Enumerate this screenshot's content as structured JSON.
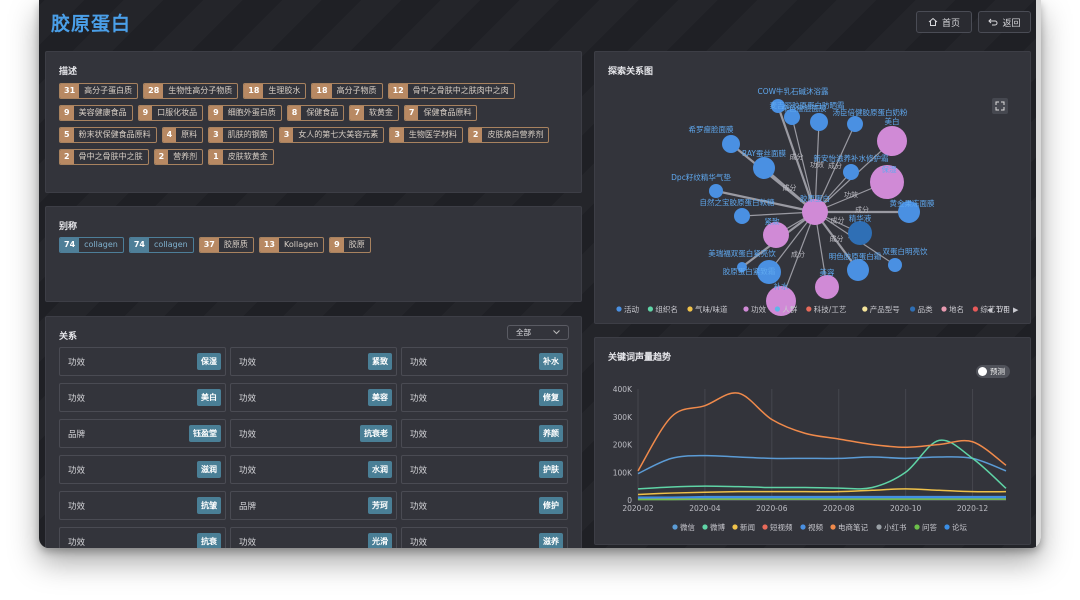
{
  "page": {
    "title": "胶原蛋白"
  },
  "header": {
    "home_label": "首页",
    "back_label": "返回"
  },
  "description": {
    "title": "描述",
    "tags": [
      {
        "count": "31",
        "label": "高分子蛋白质"
      },
      {
        "count": "28",
        "label": "生物性高分子物质"
      },
      {
        "count": "18",
        "label": "生理胶水"
      },
      {
        "count": "18",
        "label": "高分子物质"
      },
      {
        "count": "12",
        "label": "骨中之骨肤中之肤肉中之肉"
      },
      {
        "count": "9",
        "label": "美容健康食品"
      },
      {
        "count": "9",
        "label": "口服化妆品"
      },
      {
        "count": "9",
        "label": "细胞外蛋白质"
      },
      {
        "count": "8",
        "label": "保健食品"
      },
      {
        "count": "7",
        "label": "软黄金"
      },
      {
        "count": "7",
        "label": "保健食品原料"
      },
      {
        "count": "5",
        "label": "粉末状保健食品原料"
      },
      {
        "count": "4",
        "label": "原料"
      },
      {
        "count": "3",
        "label": "肌肤的钢筋"
      },
      {
        "count": "3",
        "label": "女人的第七大美容元素"
      },
      {
        "count": "3",
        "label": "生物医学材料"
      },
      {
        "count": "2",
        "label": "皮肤焕白营养剂"
      },
      {
        "count": "2",
        "label": "骨中之骨肤中之肤"
      },
      {
        "count": "2",
        "label": "营养剂"
      },
      {
        "count": "1",
        "label": "皮肤软黄金"
      }
    ]
  },
  "alias": {
    "title": "别称",
    "tags": [
      {
        "count": "74",
        "label": "collagen",
        "style": "blue"
      },
      {
        "count": "74",
        "label": "collagen",
        "style": "blue"
      },
      {
        "count": "37",
        "label": "胶原质",
        "style": "brown"
      },
      {
        "count": "13",
        "label": "Kollagen",
        "style": "brown"
      },
      {
        "count": "9",
        "label": "胶原",
        "style": "brown"
      }
    ]
  },
  "relations": {
    "title": "关系",
    "filter": "全部",
    "items": [
      {
        "type": "功效",
        "value": "保湿"
      },
      {
        "type": "功效",
        "value": "紧致"
      },
      {
        "type": "功效",
        "value": "补水"
      },
      {
        "type": "功效",
        "value": "美白"
      },
      {
        "type": "功效",
        "value": "美容"
      },
      {
        "type": "功效",
        "value": "修复"
      },
      {
        "type": "品牌",
        "value": "钰盈堂"
      },
      {
        "type": "功效",
        "value": "抗衰老"
      },
      {
        "type": "功效",
        "value": "养颜"
      },
      {
        "type": "功效",
        "value": "滋润"
      },
      {
        "type": "功效",
        "value": "水润"
      },
      {
        "type": "功效",
        "value": "护肤"
      },
      {
        "type": "功效",
        "value": "抗皱"
      },
      {
        "type": "品牌",
        "value": "芳珂"
      },
      {
        "type": "功效",
        "value": "修护"
      },
      {
        "type": "功效",
        "value": "抗衰"
      },
      {
        "type": "功效",
        "value": "光滑"
      },
      {
        "type": "功效",
        "value": "滋养"
      }
    ]
  },
  "graph": {
    "title": "探索关系图",
    "nodes": [
      {
        "label": "COW牛乳石碱沐浴露",
        "color": "#4a90e2"
      },
      {
        "label": "麦吉丽胶原蛋白防晒霜",
        "color": "#4a90e2"
      },
      {
        "label": "汤臣倍健胶原蛋白奶粉",
        "color": "#4a90e2"
      },
      {
        "label": "希罗瘦脸面膜",
        "color": "#4a90e2"
      },
      {
        "label": "朵色瘦脸面膜",
        "color": "#4a90e2"
      },
      {
        "label": "美白",
        "color": "#d08ad6"
      },
      {
        "label": "RAY蚕丝面膜",
        "color": "#4a90e2"
      },
      {
        "label": "新安怡滋养补水修护霜",
        "color": "#4a90e2"
      },
      {
        "label": "保湿",
        "color": "#d08ad6"
      },
      {
        "label": "Dpc籽纹精华气垫",
        "color": "#4a90e2"
      },
      {
        "label": "胶原蛋白",
        "color": "#d08ad6"
      },
      {
        "label": "自然之宝胶原蛋白软糖",
        "color": "#4a90e2"
      },
      {
        "label": "黄金果冻面膜",
        "color": "#4a90e2"
      },
      {
        "label": "紧致",
        "color": "#d08ad6"
      },
      {
        "label": "精华液",
        "color": "#2f6fb5"
      },
      {
        "label": "美瑞福双蛋白紧亮饮",
        "color": "#4a90e2"
      },
      {
        "label": "双蛋白明亮饮",
        "color": "#4a90e2"
      },
      {
        "label": "胶原蛋白紧致霜",
        "color": "#4a90e2"
      },
      {
        "label": "明色胶原蛋白霜",
        "color": "#4a90e2"
      },
      {
        "label": "美容",
        "color": "#d08ad6"
      },
      {
        "label": "补水",
        "color": "#d08ad6"
      }
    ],
    "edge_labels": [
      "成分",
      "成分",
      "功效",
      "成分",
      "功效",
      "成分",
      "成分",
      "功效",
      "成分",
      "成分",
      "功效",
      "成分",
      "功效",
      "成分",
      "功效"
    ],
    "legend": [
      {
        "label": "活动",
        "color": "#4a90e2"
      },
      {
        "label": "组织名",
        "color": "#5fd4a6"
      },
      {
        "label": "气味/味道",
        "color": "#f0c24a"
      },
      {
        "label": "功效",
        "color": "#d08ad6"
      },
      {
        "label": "人群",
        "color": "#5fb5e8"
      },
      {
        "label": "科技/工艺",
        "color": "#e86a5a"
      },
      {
        "label": "产品型号",
        "color": "#f5e49a"
      },
      {
        "label": "品类",
        "color": "#2f6fb5"
      },
      {
        "label": "地名",
        "color": "#e89ab0"
      },
      {
        "label": "综艺节目",
        "color": "#e85a5a"
      }
    ],
    "page": "1/4"
  },
  "trend": {
    "title": "关键词声量趋势",
    "toggle_label": "预测"
  },
  "chart_data": {
    "type": "line",
    "title": "关键词声量趋势",
    "x": [
      "2020-02",
      "2020-03",
      "2020-04",
      "2020-05",
      "2020-06",
      "2020-07",
      "2020-08",
      "2020-09",
      "2020-10",
      "2020-11",
      "2020-12",
      "2021-01"
    ],
    "xticks": [
      "2020-02",
      "2020-04",
      "2020-06",
      "2020-08",
      "2020-10",
      "2020-12"
    ],
    "yticks": [
      "0",
      "100K",
      "200K",
      "300K",
      "400K"
    ],
    "ylim": [
      0,
      400000
    ],
    "grid": "vertical",
    "legend_position": "bottom",
    "series": [
      {
        "name": "微信",
        "color": "#5b9bd5",
        "values": [
          95000,
          150000,
          160000,
          155000,
          150000,
          150000,
          150000,
          155000,
          150000,
          155000,
          150000,
          105000
        ]
      },
      {
        "name": "微博",
        "color": "#5fd4a6",
        "values": [
          40000,
          47000,
          50000,
          48000,
          45000,
          45000,
          43000,
          45000,
          100000,
          215000,
          150000,
          42000
        ]
      },
      {
        "name": "新闻",
        "color": "#f0c24a",
        "values": [
          20000,
          25000,
          28000,
          30000,
          30000,
          30000,
          30000,
          35000,
          40000,
          35000,
          30000,
          30000
        ]
      },
      {
        "name": "短视频",
        "color": "#e86a5a",
        "values": [
          5000,
          6000,
          7000,
          7000,
          8000,
          8000,
          8000,
          9000,
          9000,
          9000,
          9000,
          9000
        ]
      },
      {
        "name": "视频",
        "color": "#4a90e2",
        "values": [
          10000,
          10000,
          12000,
          12000,
          12000,
          12000,
          12000,
          12000,
          12000,
          12000,
          12000,
          12000
        ]
      },
      {
        "name": "电商笔记",
        "color": "#f08a4b",
        "values": [
          105000,
          300000,
          340000,
          385000,
          290000,
          240000,
          220000,
          200000,
          190000,
          200000,
          210000,
          125000
        ]
      },
      {
        "name": "小红书",
        "color": "#9aa0a6",
        "values": [
          3000,
          3000,
          4000,
          4000,
          4000,
          4000,
          4000,
          4000,
          4000,
          4000,
          4000,
          4000
        ]
      },
      {
        "name": "问答",
        "color": "#6cc04a",
        "values": [
          2000,
          2000,
          3000,
          3000,
          3000,
          3000,
          3000,
          3000,
          3000,
          3000,
          3000,
          3000
        ]
      },
      {
        "name": "论坛",
        "color": "#3a8ee6",
        "values": [
          8000,
          9000,
          9000,
          9000,
          9000,
          9000,
          9000,
          9000,
          9000,
          9000,
          9000,
          9000
        ]
      }
    ]
  }
}
